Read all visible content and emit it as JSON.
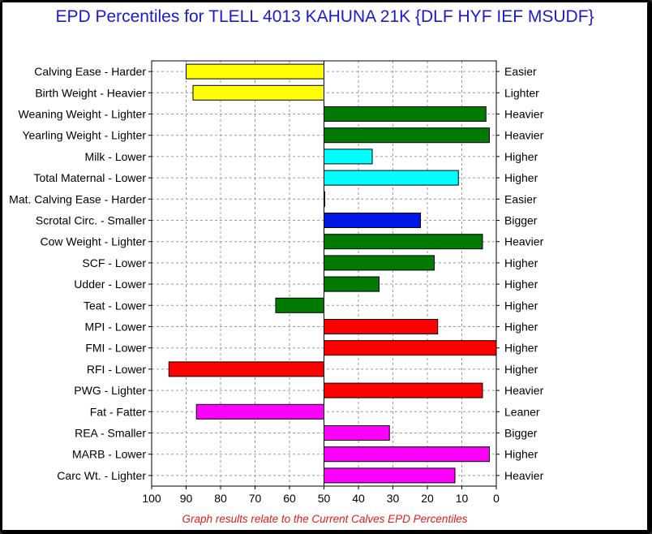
{
  "title": "EPD Percentiles for TLELL 4013 KAHUNA 21K {DLF HYF IEF MSUDF}",
  "footnote": "Graph results relate to the Current Calves EPD Percentiles",
  "chart_data": {
    "type": "bar",
    "orientation": "horizontal",
    "xlim": [
      100,
      0
    ],
    "x_reversed": true,
    "center": 50,
    "grid": true,
    "ticks": [
      100,
      90,
      80,
      70,
      60,
      50,
      40,
      30,
      20,
      10,
      0
    ],
    "rows": [
      {
        "left_label": "Calving Ease - Harder",
        "right_label": "Easier",
        "value": 90,
        "color": "#ffff00"
      },
      {
        "left_label": "Birth Weight - Heavier",
        "right_label": "Lighter",
        "value": 88,
        "color": "#ffff00"
      },
      {
        "left_label": "Weaning Weight - Lighter",
        "right_label": "Heavier",
        "value": 3,
        "color": "#007a00"
      },
      {
        "left_label": "Yearling Weight - Lighter",
        "right_label": "Heavier",
        "value": 2,
        "color": "#007a00"
      },
      {
        "left_label": "Milk - Lower",
        "right_label": "Higher",
        "value": 36,
        "color": "#00ffff"
      },
      {
        "left_label": "Total Maternal - Lower",
        "right_label": "Higher",
        "value": 11,
        "color": "#00ffff"
      },
      {
        "left_label": "Mat. Calving Ease - Harder",
        "right_label": "Easier",
        "value": 50,
        "color": "#000000"
      },
      {
        "left_label": "Scrotal Circ. - Smaller",
        "right_label": "Bigger",
        "value": 22,
        "color": "#0018e6"
      },
      {
        "left_label": "Cow Weight - Lighter",
        "right_label": "Heavier",
        "value": 4,
        "color": "#007a00"
      },
      {
        "left_label": "SCF - Lower",
        "right_label": "Higher",
        "value": 18,
        "color": "#007a00"
      },
      {
        "left_label": "Udder - Lower",
        "right_label": "Higher",
        "value": 34,
        "color": "#007a00"
      },
      {
        "left_label": "Teat - Lower",
        "right_label": "Higher",
        "value": 64,
        "color": "#007a00"
      },
      {
        "left_label": "MPI - Lower",
        "right_label": "Higher",
        "value": 17,
        "color": "#ff0000"
      },
      {
        "left_label": "FMI - Lower",
        "right_label": "Higher",
        "value": 0,
        "color": "#ff0000"
      },
      {
        "left_label": "RFI - Lower",
        "right_label": "Higher",
        "value": 95,
        "color": "#ff0000"
      },
      {
        "left_label": "PWG - Lighter",
        "right_label": "Heavier",
        "value": 4,
        "color": "#ff0000"
      },
      {
        "left_label": "Fat - Fatter",
        "right_label": "Leaner",
        "value": 87,
        "color": "#ff00ff"
      },
      {
        "left_label": "REA - Smaller",
        "right_label": "Bigger",
        "value": 31,
        "color": "#ff00ff"
      },
      {
        "left_label": "MARB - Lower",
        "right_label": "Higher",
        "value": 2,
        "color": "#ff00ff"
      },
      {
        "left_label": "Carc Wt. - Lighter",
        "right_label": "Heavier",
        "value": 12,
        "color": "#ff00ff"
      }
    ]
  }
}
